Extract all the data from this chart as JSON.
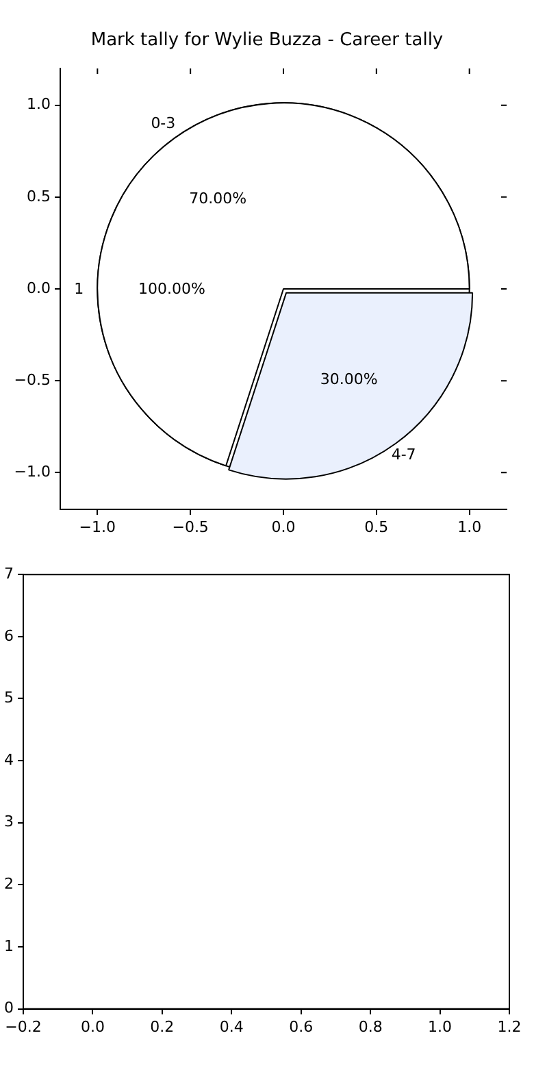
{
  "chart_data": [
    {
      "type": "scatter",
      "title": "Mark tally for Wylie Buzza - Career tally",
      "xlim": [
        -1.2,
        1.2
      ],
      "ylim": [
        -1.2,
        1.2
      ],
      "grid": false,
      "xticks": [
        {
          "value": -1,
          "label": "−1.0"
        },
        {
          "value": -0.5,
          "label": "−0.5"
        },
        {
          "value": 0,
          "label": "0.0"
        },
        {
          "value": 0.5,
          "label": "0.5"
        },
        {
          "value": 1,
          "label": "1.0"
        }
      ],
      "yticks": [
        {
          "value": -1,
          "label": "−1.0"
        },
        {
          "value": -0.5,
          "label": "−0.5"
        },
        {
          "value": 0,
          "label": "0.0"
        },
        {
          "value": 0.5,
          "label": "0.5"
        },
        {
          "value": 1,
          "label": "1.0"
        }
      ]
    },
    {
      "type": "pie",
      "categories": [
        "1"
      ],
      "values": [
        100
      ],
      "colors": [
        "#ffffff"
      ],
      "value_labels": [
        "100.00%"
      ]
    },
    {
      "type": "pie",
      "categories": [
        "0-3",
        "4-7"
      ],
      "values": [
        70,
        30
      ],
      "colors": [
        "#ffffff",
        "#eaf0fd"
      ],
      "value_labels": [
        "70.00%",
        "30.00%"
      ]
    },
    {
      "type": "scatter",
      "xlim": [
        -0.2,
        1.2
      ],
      "ylim": [
        0,
        7
      ],
      "grid": false,
      "xticks": [
        {
          "value": -0.2,
          "label": "−0.2"
        },
        {
          "value": 0,
          "label": "0.0"
        },
        {
          "value": 0.2,
          "label": "0.2"
        },
        {
          "value": 0.4,
          "label": "0.4"
        },
        {
          "value": 0.6,
          "label": "0.6"
        },
        {
          "value": 0.8,
          "label": "0.8"
        },
        {
          "value": 1,
          "label": "1.0"
        },
        {
          "value": 1.2,
          "label": "1.2"
        }
      ],
      "yticks": [
        0,
        1,
        2,
        3,
        4,
        5,
        6,
        7
      ]
    }
  ]
}
